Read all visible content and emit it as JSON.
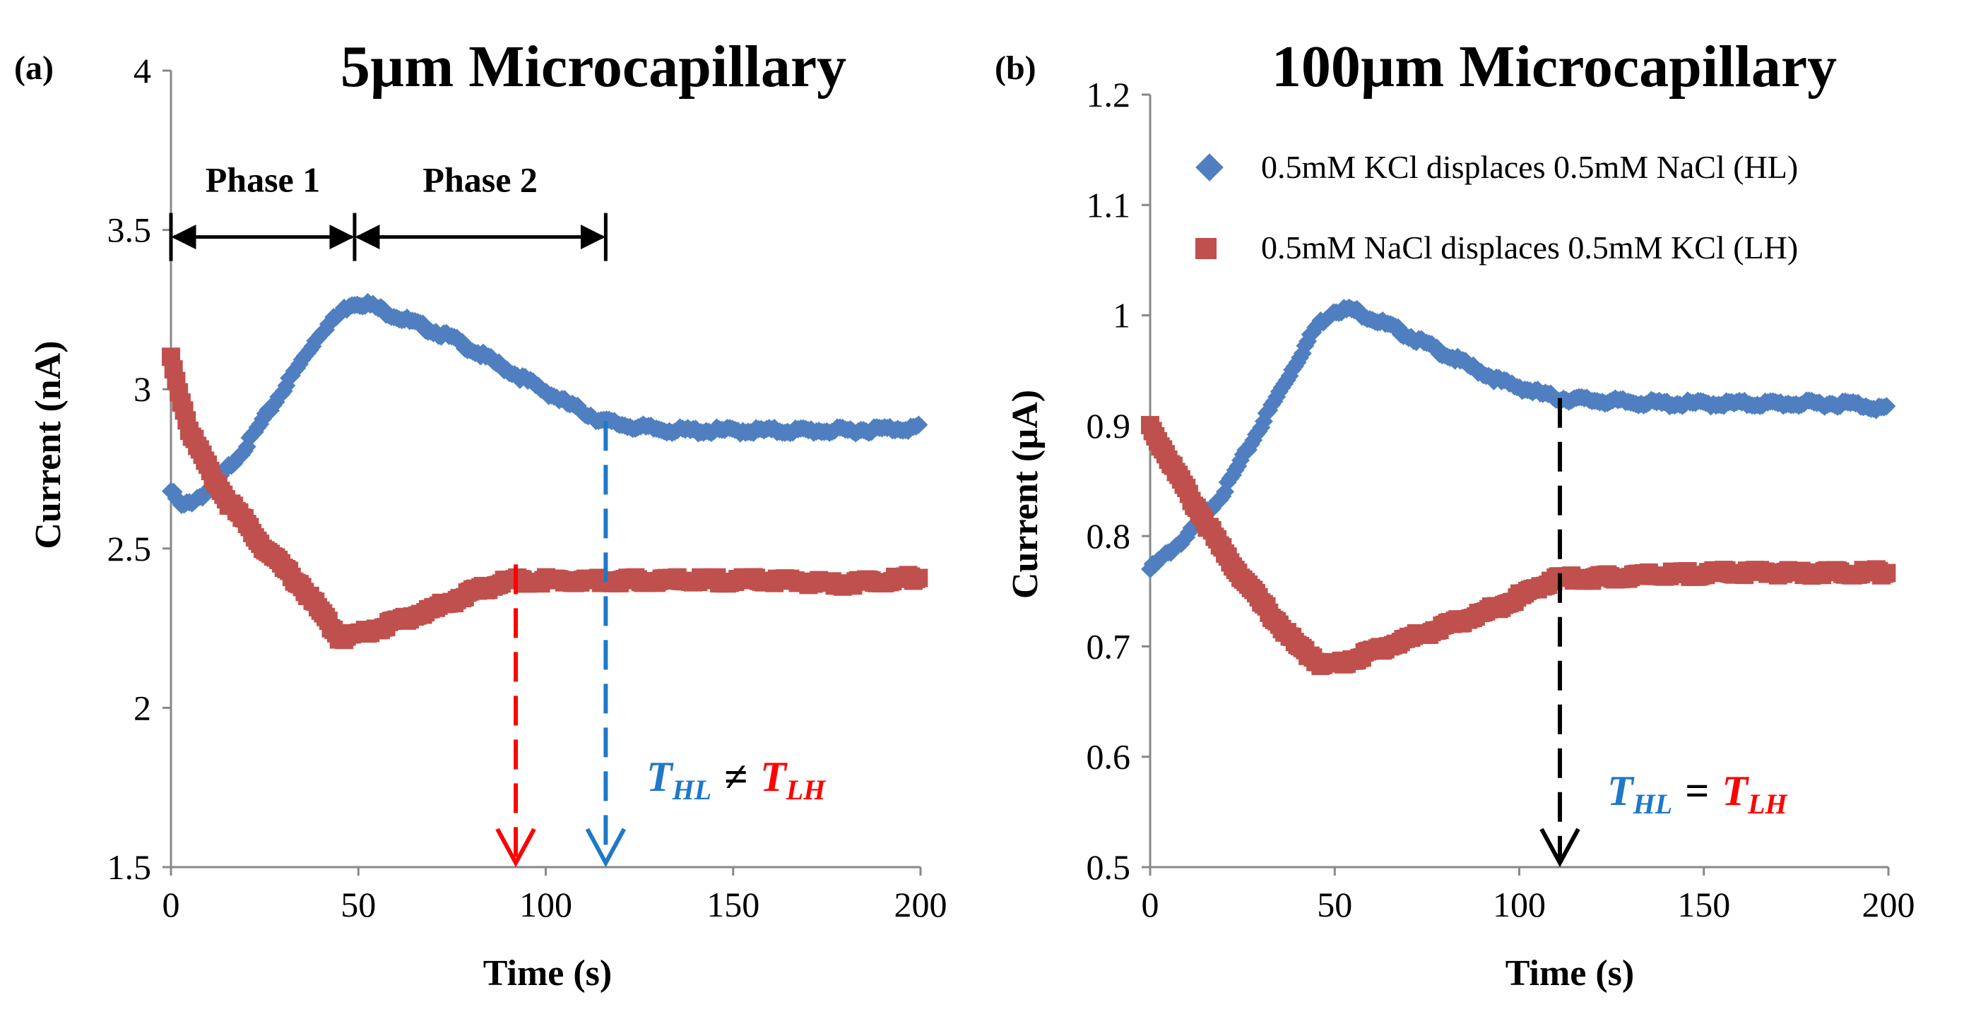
{
  "colors": {
    "hl": "#4f7fc0",
    "lh": "#c0504d",
    "red_arrow": "#ff0000",
    "blue_arrow": "#1f78c8",
    "black": "#000000"
  },
  "chart_data": [
    {
      "type": "scatter",
      "panel_label": "(a)",
      "title": "5µm Microcapillary",
      "xlabel": "Time (s)",
      "ylabel": "Current (nA)",
      "xlim": [
        0,
        200
      ],
      "ylim": [
        1.5,
        4
      ],
      "xticks": [
        "0",
        "50",
        "100",
        "150",
        "200"
      ],
      "yticks": [
        "1.5",
        "2",
        "2.5",
        "3",
        "3.5",
        "4"
      ],
      "xtick_values": [
        0,
        50,
        100,
        150,
        200
      ],
      "ytick_values": [
        1.5,
        2,
        2.5,
        3,
        3.5,
        4
      ],
      "series": [
        {
          "name": "0.5mM KCl displaces 0.5mM NaCl (HL)",
          "marker": "diamond",
          "color": "#4f7fc0",
          "x": [
            0,
            3,
            10,
            20,
            30,
            40,
            48,
            52,
            60,
            75,
            90,
            105,
            115,
            125,
            135,
            150,
            165,
            180,
            200
          ],
          "y": [
            2.68,
            2.63,
            2.68,
            2.82,
            3.0,
            3.18,
            3.27,
            3.27,
            3.23,
            3.16,
            3.06,
            2.96,
            2.9,
            2.88,
            2.87,
            2.87,
            2.87,
            2.87,
            2.88
          ]
        },
        {
          "name": "0.5mM NaCl displaces 0.5mM KCl (LH)",
          "marker": "square",
          "color": "#c0504d",
          "x": [
            0,
            2,
            5,
            10,
            15,
            20,
            25,
            30,
            35,
            40,
            45,
            50,
            60,
            70,
            80,
            90,
            100,
            120,
            140,
            160,
            180,
            200
          ],
          "y": [
            3.1,
            3.0,
            2.87,
            2.75,
            2.65,
            2.58,
            2.5,
            2.44,
            2.38,
            2.3,
            2.22,
            2.23,
            2.27,
            2.31,
            2.36,
            2.4,
            2.4,
            2.4,
            2.4,
            2.4,
            2.39,
            2.41
          ]
        }
      ],
      "phases": [
        {
          "label": "Phase 1",
          "from": 0,
          "to": 49
        },
        {
          "label": "Phase 2",
          "from": 49,
          "to": 116
        }
      ],
      "phase_arrow_y": 3.5,
      "markers": [
        {
          "x": 92,
          "from_y": 2.45,
          "to_y": 1.5,
          "color": "#ff0000"
        },
        {
          "x": 116,
          "from_y": 2.9,
          "to_y": 1.5,
          "color": "#1f78c8"
        }
      ],
      "annotation": {
        "t": "T",
        "hl": "HL",
        "op": "≠",
        "lh": "LH"
      }
    },
    {
      "type": "scatter",
      "panel_label": "(b)",
      "title": "100µm Microcapillary",
      "xlabel": "Time (s)",
      "ylabel": "Current (µA)",
      "xlim": [
        0,
        200
      ],
      "ylim": [
        0.5,
        1.2
      ],
      "xticks": [
        "0",
        "50",
        "100",
        "150",
        "200"
      ],
      "yticks": [
        "0.5",
        "0.6",
        "0.7",
        "0.8",
        "0.9",
        "1",
        "1.1",
        "1.2"
      ],
      "xtick_values": [
        0,
        50,
        100,
        150,
        200
      ],
      "ytick_values": [
        0.5,
        0.6,
        0.7,
        0.8,
        0.9,
        1.0,
        1.1,
        1.2
      ],
      "series": [
        {
          "name": "0.5mM KCl displaces 0.5mM NaCl (HL)",
          "marker": "diamond",
          "color": "#4f7fc0",
          "x": [
            0,
            10,
            20,
            30,
            40,
            45,
            50,
            55,
            65,
            80,
            95,
            110,
            125,
            140,
            160,
            180,
            190,
            200
          ],
          "y": [
            0.77,
            0.8,
            0.84,
            0.9,
            0.96,
            0.99,
            1.005,
            1.005,
            0.99,
            0.965,
            0.94,
            0.925,
            0.922,
            0.92,
            0.92,
            0.92,
            0.92,
            0.915
          ]
        },
        {
          "name": "0.5mM NaCl displaces 0.5mM KCl (LH)",
          "marker": "square",
          "color": "#c0504d",
          "x": [
            0,
            5,
            10,
            20,
            30,
            40,
            47,
            52,
            60,
            70,
            80,
            90,
            100,
            110,
            120,
            140,
            160,
            180,
            200
          ],
          "y": [
            0.9,
            0.87,
            0.84,
            0.785,
            0.74,
            0.7,
            0.683,
            0.685,
            0.695,
            0.707,
            0.718,
            0.73,
            0.745,
            0.762,
            0.762,
            0.765,
            0.767,
            0.767,
            0.767
          ]
        }
      ],
      "markers": [
        {
          "x": 111,
          "from_y": 0.925,
          "to_y": 0.5,
          "color": "#000000"
        }
      ],
      "annotation": {
        "t": "T",
        "hl": "HL",
        "op": "=",
        "lh": "LH"
      }
    }
  ]
}
